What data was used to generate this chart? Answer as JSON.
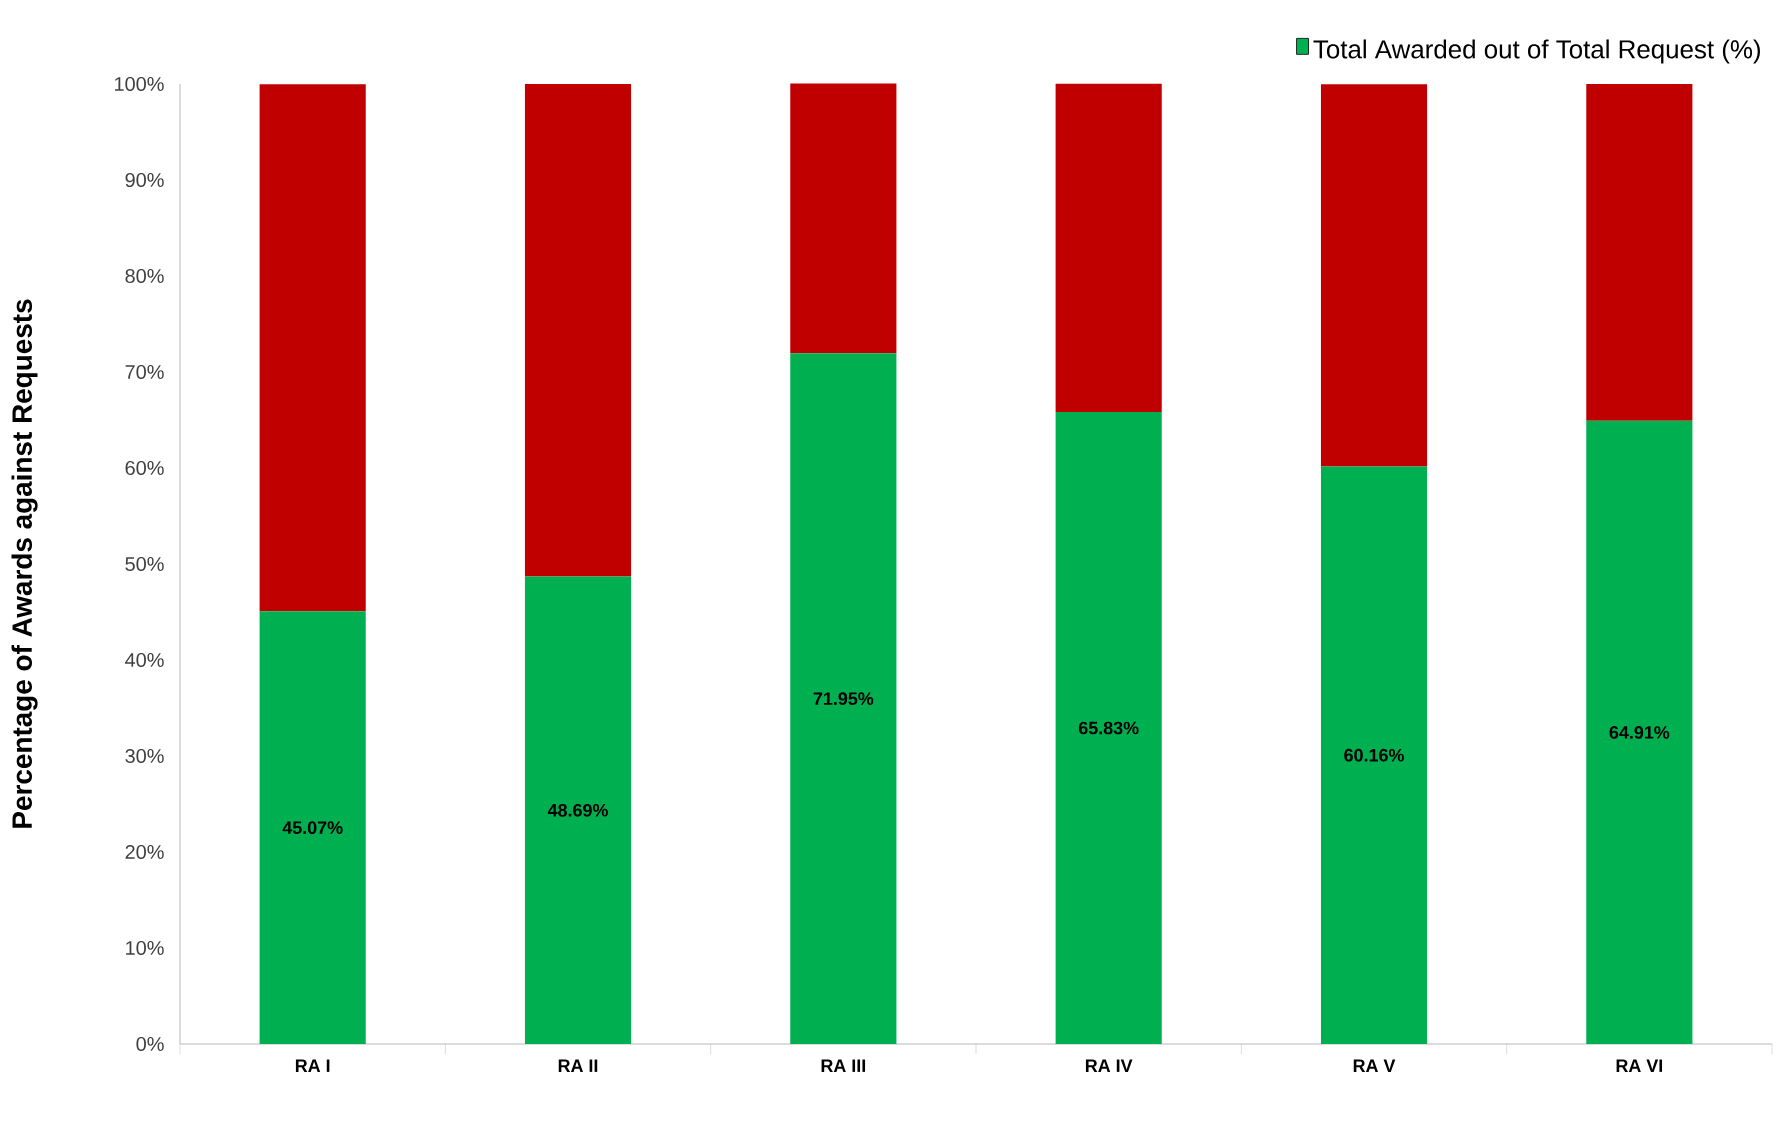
{
  "chart_data": {
    "type": "bar",
    "stacked": true,
    "ylabel": "Percentage of Awards against Requests",
    "categories": [
      "RA I",
      "RA II",
      "RA III",
      "RA IV",
      "RA V",
      "RA VI"
    ],
    "series": [
      {
        "name": "Total Awarded out of Total Request (%)",
        "color": "#00b050",
        "values": [
          45.07,
          48.69,
          71.95,
          65.83,
          60.16,
          64.91
        ],
        "value_labels": [
          "45.07%",
          "48.69%",
          "71.95%",
          "65.83%",
          "60.16%",
          "64.91%"
        ]
      },
      {
        "color": "#c00000",
        "values": [
          54.9,
          51.3,
          28.1,
          34.2,
          39.8,
          35.1
        ]
      }
    ],
    "ylim": [
      0,
      100
    ],
    "yticks": [
      {
        "value": 0,
        "label": "0%"
      },
      {
        "value": 10,
        "label": "10%"
      },
      {
        "value": 20,
        "label": "20%"
      },
      {
        "value": 30,
        "label": "30%"
      },
      {
        "value": 40,
        "label": "40%"
      },
      {
        "value": 50,
        "label": "50%"
      },
      {
        "value": 60,
        "label": "60%"
      },
      {
        "value": 70,
        "label": "70%"
      },
      {
        "value": 80,
        "label": "80%"
      },
      {
        "value": 90,
        "label": "90%"
      },
      {
        "value": 100,
        "label": "100%"
      }
    ],
    "grid": false,
    "legend": "top right"
  }
}
